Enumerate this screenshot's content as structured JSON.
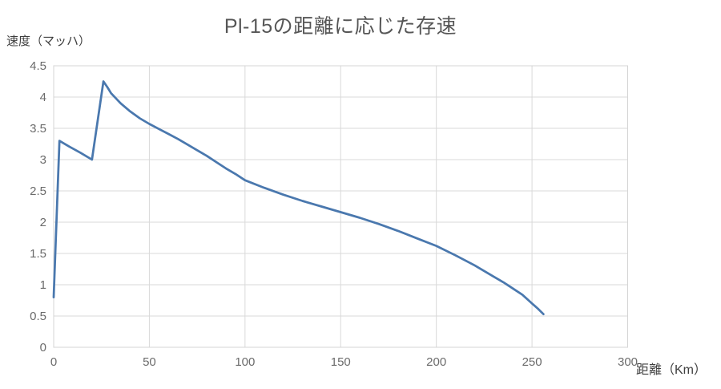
{
  "colors": {
    "line": "#4a78ae",
    "grid": "#d9d9d9",
    "plot_border": "#d4d4d4",
    "tick_text": "#6b6b6b",
    "label_text": "#3f3f3f",
    "title_text": "#565656",
    "background": "#ffffff"
  },
  "chart_data": {
    "type": "line",
    "title": "Pl-15の距離に応じた存速",
    "xlabel": "距離（Km）",
    "ylabel": "速度（マッハ）",
    "xlim": [
      0,
      300
    ],
    "ylim": [
      0,
      4.5
    ],
    "x_ticks": [
      0,
      50,
      100,
      150,
      200,
      250,
      300
    ],
    "y_ticks": [
      0,
      0.5,
      1,
      1.5,
      2,
      2.5,
      3,
      3.5,
      4,
      4.5
    ],
    "grid": true,
    "legend": false,
    "series": [
      {
        "name": "存速",
        "points": [
          [
            0,
            0.8
          ],
          [
            3,
            3.3
          ],
          [
            8,
            3.21
          ],
          [
            14,
            3.11
          ],
          [
            20,
            3.0
          ],
          [
            26,
            4.25
          ],
          [
            28,
            4.16
          ],
          [
            30,
            4.06
          ],
          [
            35,
            3.9
          ],
          [
            40,
            3.77
          ],
          [
            45,
            3.66
          ],
          [
            50,
            3.57
          ],
          [
            55,
            3.49
          ],
          [
            60,
            3.41
          ],
          [
            65,
            3.33
          ],
          [
            70,
            3.24
          ],
          [
            75,
            3.15
          ],
          [
            80,
            3.06
          ],
          [
            85,
            2.96
          ],
          [
            90,
            2.86
          ],
          [
            95,
            2.77
          ],
          [
            100,
            2.67
          ],
          [
            110,
            2.55
          ],
          [
            120,
            2.44
          ],
          [
            130,
            2.34
          ],
          [
            140,
            2.25
          ],
          [
            150,
            2.16
          ],
          [
            160,
            2.07
          ],
          [
            170,
            1.97
          ],
          [
            180,
            1.86
          ],
          [
            190,
            1.74
          ],
          [
            200,
            1.62
          ],
          [
            210,
            1.47
          ],
          [
            220,
            1.31
          ],
          [
            230,
            1.13
          ],
          [
            235,
            1.04
          ],
          [
            240,
            0.94
          ],
          [
            245,
            0.84
          ],
          [
            250,
            0.7
          ],
          [
            253,
            0.62
          ],
          [
            256,
            0.53
          ]
        ]
      }
    ]
  },
  "plot_geometry_note": "velocity-vs-distance decay curve with boost peaks at 3km (Mach 3.3) and 26km (Mach 4.25)"
}
